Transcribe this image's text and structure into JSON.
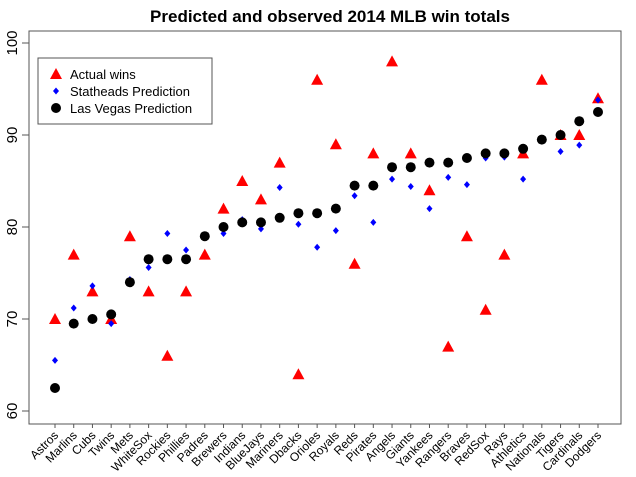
{
  "chart_data": {
    "type": "scatter",
    "title": "Predicted and observed 2014 MLB win totals",
    "xlabel": "",
    "ylabel": "",
    "ylim": [
      60,
      100
    ],
    "yticks": [
      60,
      70,
      80,
      90,
      100
    ],
    "legend_position": "top-left",
    "categories": [
      "Astros",
      "Marlins",
      "Cubs",
      "Twins",
      "Mets",
      "WhiteSox",
      "Rockies",
      "Phillies",
      "Padres",
      "Brewers",
      "Indians",
      "BlueJays",
      "Mariners",
      "Dbacks",
      "Orioles",
      "Royals",
      "Reds",
      "Pirates",
      "Angels",
      "Giants",
      "Yankees",
      "Rangers",
      "Braves",
      "RedSox",
      "Rays",
      "Athletics",
      "Nationals",
      "Tigers",
      "Cardinals",
      "Dodgers"
    ],
    "series": [
      {
        "name": "Actual wins",
        "marker": "triangle",
        "color": "#ff0000",
        "values": [
          70,
          77,
          73,
          70,
          79,
          73,
          66,
          73,
          77,
          82,
          85,
          83,
          87,
          64,
          96,
          89,
          76,
          88,
          98,
          88,
          84,
          67,
          79,
          71,
          77,
          88,
          96,
          90,
          90,
          94
        ]
      },
      {
        "name": "Statheads Prediction",
        "marker": "diamond",
        "color": "#0000ff",
        "values": [
          65.5,
          71.2,
          73.6,
          69.5,
          74.3,
          75.6,
          79.3,
          77.5,
          79.0,
          79.3,
          80.8,
          79.8,
          84.3,
          80.3,
          77.8,
          79.6,
          83.4,
          80.5,
          85.2,
          84.4,
          82.0,
          85.4,
          84.6,
          87.5,
          87.6,
          85.2,
          89.5,
          88.2,
          88.9,
          93.8
        ]
      },
      {
        "name": "Las Vegas Prediction",
        "marker": "circle",
        "color": "#000000",
        "values": [
          62.5,
          69.5,
          70,
          70.5,
          74,
          76.5,
          76.5,
          76.5,
          79,
          80,
          80.5,
          80.5,
          81,
          81.5,
          81.5,
          82,
          84.5,
          84.5,
          86.5,
          86.5,
          87,
          87,
          87.5,
          88,
          88,
          88.5,
          89.5,
          90,
          91.5,
          92.5
        ]
      }
    ]
  }
}
